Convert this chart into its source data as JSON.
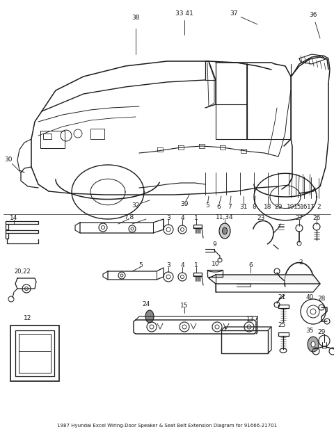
{
  "bg_color": "#ffffff",
  "lc": "#1a1a1a",
  "fig_width": 4.8,
  "fig_height": 6.24,
  "dpi": 100
}
